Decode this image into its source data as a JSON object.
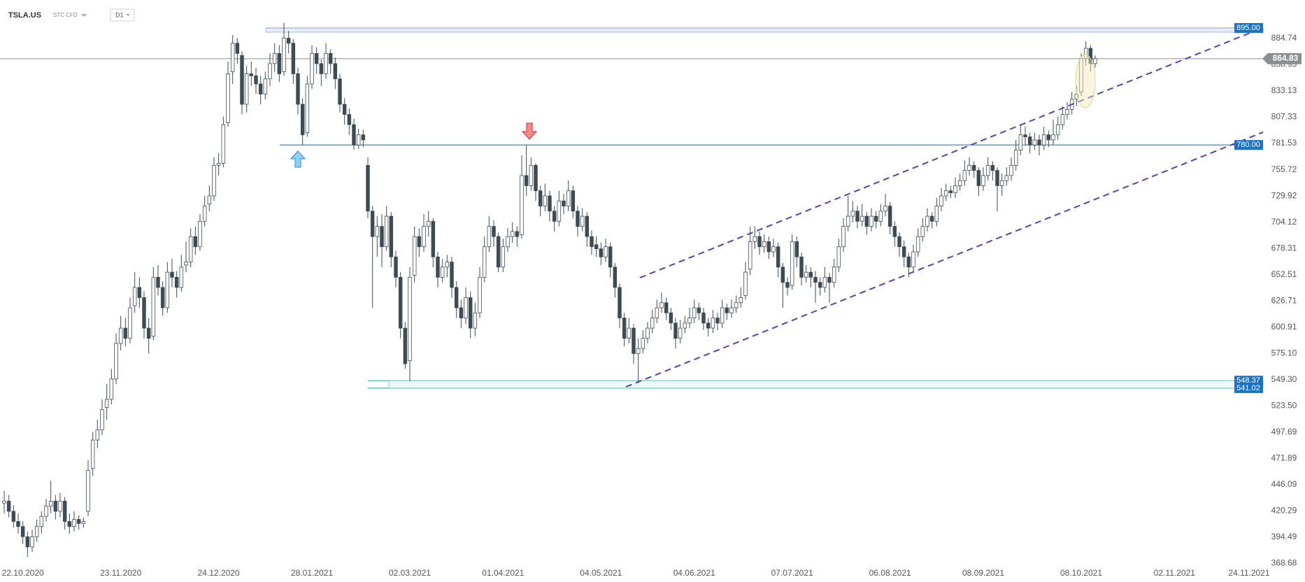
{
  "header": {
    "symbol": "TSLA.US",
    "kind": "STC CFD",
    "interval": "D1"
  },
  "chart_data": {
    "type": "candlestick",
    "ohlc": [
      [
        428,
        440,
        418,
        430
      ],
      [
        430,
        436,
        414,
        420
      ],
      [
        420,
        426,
        404,
        410
      ],
      [
        410,
        418,
        398,
        405
      ],
      [
        405,
        410,
        388,
        395
      ],
      [
        395,
        400,
        375,
        385
      ],
      [
        385,
        402,
        380,
        395
      ],
      [
        395,
        412,
        390,
        405
      ],
      [
        405,
        420,
        398,
        415
      ],
      [
        415,
        432,
        410,
        425
      ],
      [
        425,
        450,
        418,
        430
      ],
      [
        430,
        436,
        412,
        420
      ],
      [
        420,
        438,
        414,
        430
      ],
      [
        430,
        434,
        402,
        410
      ],
      [
        410,
        418,
        398,
        405
      ],
      [
        405,
        420,
        400,
        412
      ],
      [
        412,
        416,
        402,
        408
      ],
      [
        408,
        414,
        404,
        410
      ],
      [
        420,
        470,
        415,
        460
      ],
      [
        462,
        498,
        455,
        490
      ],
      [
        490,
        510,
        482,
        500
      ],
      [
        500,
        530,
        495,
        520
      ],
      [
        522,
        545,
        510,
        530
      ],
      [
        530,
        560,
        525,
        550
      ],
      [
        550,
        595,
        545,
        585
      ],
      [
        585,
        612,
        578,
        600
      ],
      [
        600,
        610,
        582,
        590
      ],
      [
        590,
        630,
        585,
        620
      ],
      [
        622,
        655,
        615,
        640
      ],
      [
        640,
        650,
        620,
        630
      ],
      [
        630,
        636,
        590,
        600
      ],
      [
        600,
        610,
        575,
        590
      ],
      [
        592,
        660,
        588,
        650
      ],
      [
        650,
        662,
        632,
        640
      ],
      [
        640,
        646,
        612,
        620
      ],
      [
        620,
        665,
        615,
        655
      ],
      [
        655,
        668,
        640,
        650
      ],
      [
        650,
        656,
        630,
        640
      ],
      [
        640,
        672,
        636,
        660
      ],
      [
        662,
        685,
        655,
        665
      ],
      [
        665,
        698,
        660,
        690
      ],
      [
        690,
        700,
        672,
        680
      ],
      [
        680,
        712,
        676,
        705
      ],
      [
        705,
        730,
        700,
        720
      ],
      [
        722,
        740,
        715,
        730
      ],
      [
        730,
        768,
        725,
        760
      ],
      [
        760,
        772,
        750,
        762
      ],
      [
        762,
        808,
        758,
        800
      ],
      [
        802,
        862,
        798,
        850
      ],
      [
        852,
        888,
        840,
        880
      ],
      [
        880,
        885,
        860,
        870
      ],
      [
        868,
        872,
        810,
        820
      ],
      [
        820,
        858,
        812,
        850
      ],
      [
        850,
        862,
        838,
        848
      ],
      [
        848,
        856,
        830,
        840
      ],
      [
        840,
        848,
        820,
        830
      ],
      [
        830,
        852,
        825,
        845
      ],
      [
        845,
        870,
        838,
        860
      ],
      [
        860,
        880,
        852,
        870
      ],
      [
        870,
        878,
        842,
        850
      ],
      [
        852,
        900,
        848,
        885
      ],
      [
        885,
        892,
        870,
        880
      ],
      [
        880,
        884,
        840,
        850
      ],
      [
        850,
        856,
        810,
        820
      ],
      [
        820,
        826,
        780,
        790
      ],
      [
        792,
        848,
        788,
        840
      ],
      [
        840,
        878,
        835,
        870
      ],
      [
        870,
        876,
        850,
        860
      ],
      [
        860,
        864,
        838,
        850
      ],
      [
        850,
        880,
        845,
        870
      ],
      [
        870,
        874,
        850,
        860
      ],
      [
        860,
        866,
        835,
        845
      ],
      [
        845,
        850,
        812,
        820
      ],
      [
        820,
        826,
        800,
        810
      ],
      [
        810,
        816,
        790,
        800
      ],
      [
        800,
        806,
        775,
        780
      ],
      [
        780,
        796,
        776,
        790
      ],
      [
        790,
        795,
        778,
        785
      ],
      [
        760,
        768,
        708,
        715
      ],
      [
        715,
        720,
        620,
        690
      ],
      [
        690,
        710,
        670,
        700
      ],
      [
        700,
        712,
        660,
        680
      ],
      [
        680,
        720,
        676,
        710
      ],
      [
        710,
        714,
        660,
        670
      ],
      [
        670,
        676,
        640,
        650
      ],
      [
        650,
        655,
        590,
        600
      ],
      [
        600,
        606,
        560,
        565
      ],
      [
        568,
        660,
        548,
        650
      ],
      [
        652,
        700,
        645,
        690
      ],
      [
        690,
        698,
        670,
        680
      ],
      [
        680,
        712,
        675,
        700
      ],
      [
        700,
        715,
        690,
        705
      ],
      [
        705,
        708,
        660,
        670
      ],
      [
        670,
        675,
        640,
        650
      ],
      [
        650,
        668,
        645,
        660
      ],
      [
        660,
        672,
        650,
        665
      ],
      [
        665,
        670,
        630,
        640
      ],
      [
        640,
        646,
        610,
        620
      ],
      [
        620,
        628,
        600,
        610
      ],
      [
        610,
        640,
        604,
        630
      ],
      [
        630,
        636,
        590,
        600
      ],
      [
        600,
        625,
        592,
        615
      ],
      [
        615,
        660,
        610,
        650
      ],
      [
        650,
        690,
        645,
        680
      ],
      [
        680,
        710,
        675,
        700
      ],
      [
        700,
        706,
        680,
        690
      ],
      [
        690,
        694,
        655,
        660
      ],
      [
        660,
        688,
        655,
        680
      ],
      [
        680,
        698,
        675,
        690
      ],
      [
        690,
        704,
        684,
        695
      ],
      [
        695,
        700,
        680,
        690
      ],
      [
        692,
        770,
        688,
        750
      ],
      [
        750,
        780,
        730,
        740
      ],
      [
        740,
        768,
        735,
        760
      ],
      [
        760,
        762,
        725,
        735
      ],
      [
        735,
        740,
        710,
        720
      ],
      [
        720,
        742,
        715,
        730
      ],
      [
        730,
        735,
        705,
        715
      ],
      [
        715,
        720,
        695,
        705
      ],
      [
        705,
        735,
        700,
        725
      ],
      [
        725,
        732,
        712,
        720
      ],
      [
        720,
        745,
        715,
        735
      ],
      [
        735,
        740,
        708,
        715
      ],
      [
        715,
        720,
        690,
        700
      ],
      [
        700,
        718,
        695,
        710
      ],
      [
        710,
        714,
        680,
        690
      ],
      [
        690,
        696,
        672,
        680
      ],
      [
        682,
        690,
        670,
        678
      ],
      [
        678,
        684,
        662,
        670
      ],
      [
        670,
        688,
        665,
        680
      ],
      [
        680,
        684,
        650,
        660
      ],
      [
        660,
        664,
        630,
        640
      ],
      [
        640,
        644,
        600,
        610
      ],
      [
        610,
        615,
        582,
        590
      ],
      [
        590,
        610,
        585,
        600
      ],
      [
        600,
        604,
        565,
        575
      ],
      [
        575,
        590,
        546,
        580
      ],
      [
        580,
        598,
        575,
        590
      ],
      [
        590,
        606,
        585,
        600
      ],
      [
        600,
        618,
        595,
        610
      ],
      [
        610,
        628,
        605,
        620
      ],
      [
        620,
        635,
        615,
        625
      ],
      [
        625,
        630,
        608,
        615
      ],
      [
        615,
        620,
        598,
        605
      ],
      [
        605,
        610,
        580,
        590
      ],
      [
        590,
        608,
        585,
        600
      ],
      [
        600,
        612,
        595,
        605
      ],
      [
        605,
        620,
        600,
        610
      ],
      [
        610,
        628,
        605,
        620
      ],
      [
        620,
        625,
        608,
        615
      ],
      [
        615,
        620,
        598,
        605
      ],
      [
        605,
        610,
        592,
        600
      ],
      [
        600,
        618,
        595,
        610
      ],
      [
        610,
        615,
        598,
        605
      ],
      [
        605,
        628,
        600,
        620
      ],
      [
        620,
        624,
        608,
        615
      ],
      [
        615,
        628,
        610,
        620
      ],
      [
        620,
        632,
        615,
        625
      ],
      [
        625,
        640,
        620,
        630
      ],
      [
        632,
        665,
        628,
        655
      ],
      [
        658,
        700,
        652,
        685
      ],
      [
        685,
        700,
        678,
        690
      ],
      [
        690,
        695,
        672,
        680
      ],
      [
        680,
        692,
        674,
        685
      ],
      [
        685,
        690,
        668,
        675
      ],
      [
        675,
        688,
        670,
        680
      ],
      [
        680,
        684,
        650,
        660
      ],
      [
        660,
        664,
        620,
        645
      ],
      [
        645,
        650,
        632,
        640
      ],
      [
        642,
        692,
        638,
        685
      ],
      [
        685,
        690,
        660,
        670
      ],
      [
        670,
        674,
        642,
        650
      ],
      [
        650,
        662,
        645,
        655
      ],
      [
        655,
        660,
        640,
        650
      ],
      [
        650,
        656,
        625,
        645
      ],
      [
        645,
        650,
        632,
        640
      ],
      [
        640,
        660,
        635,
        650
      ],
      [
        650,
        654,
        625,
        645
      ],
      [
        645,
        668,
        640,
        660
      ],
      [
        660,
        688,
        655,
        680
      ],
      [
        680,
        708,
        675,
        700
      ],
      [
        700,
        730,
        695,
        710
      ],
      [
        710,
        725,
        704,
        715
      ],
      [
        715,
        720,
        698,
        705
      ],
      [
        705,
        722,
        700,
        710
      ],
      [
        710,
        714,
        692,
        700
      ],
      [
        700,
        718,
        695,
        710
      ],
      [
        710,
        715,
        698,
        705
      ],
      [
        705,
        722,
        700,
        715
      ],
      [
        715,
        732,
        710,
        720
      ],
      [
        720,
        724,
        692,
        700
      ],
      [
        700,
        705,
        680,
        690
      ],
      [
        690,
        694,
        670,
        680
      ],
      [
        680,
        686,
        660,
        670
      ],
      [
        670,
        674,
        650,
        660
      ],
      [
        660,
        682,
        655,
        675
      ],
      [
        675,
        698,
        670,
        690
      ],
      [
        690,
        708,
        685,
        700
      ],
      [
        700,
        718,
        695,
        710
      ],
      [
        710,
        714,
        698,
        705
      ],
      [
        705,
        728,
        700,
        720
      ],
      [
        720,
        738,
        715,
        730
      ],
      [
        730,
        742,
        725,
        735
      ],
      [
        735,
        740,
        728,
        733
      ],
      [
        733,
        748,
        728,
        740
      ],
      [
        740,
        752,
        735,
        745
      ],
      [
        745,
        765,
        740,
        755
      ],
      [
        755,
        768,
        750,
        760
      ],
      [
        760,
        764,
        748,
        755
      ],
      [
        755,
        758,
        730,
        740
      ],
      [
        740,
        758,
        735,
        750
      ],
      [
        750,
        768,
        745,
        760
      ],
      [
        760,
        764,
        745,
        755
      ],
      [
        755,
        758,
        715,
        740
      ],
      [
        740,
        752,
        730,
        745
      ],
      [
        745,
        758,
        740,
        750
      ],
      [
        750,
        768,
        745,
        760
      ],
      [
        760,
        785,
        755,
        775
      ],
      [
        775,
        800,
        770,
        790
      ],
      [
        790,
        798,
        780,
        788
      ],
      [
        788,
        792,
        772,
        780
      ],
      [
        780,
        792,
        775,
        785
      ],
      [
        785,
        790,
        770,
        780
      ],
      [
        780,
        798,
        775,
        790
      ],
      [
        790,
        794,
        778,
        785
      ],
      [
        785,
        805,
        780,
        790
      ],
      [
        790,
        808,
        785,
        800
      ],
      [
        800,
        818,
        795,
        810
      ],
      [
        810,
        822,
        805,
        815
      ],
      [
        815,
        832,
        810,
        825
      ],
      [
        825,
        838,
        818,
        830
      ],
      [
        832,
        870,
        828,
        865
      ],
      [
        865,
        882,
        858,
        875
      ],
      [
        875,
        878,
        852,
        860
      ],
      [
        860,
        868,
        856,
        864.83
      ]
    ],
    "bull_color": "#ffffff",
    "bear_color": "#3d4b55",
    "wick_color": "#3d4b55",
    "xlim": [
      -0.9,
      270
    ],
    "xticks": [
      {
        "value": 4,
        "label": "22.10.2020"
      },
      {
        "value": 25,
        "label": "23.11.2020"
      },
      {
        "value": 46,
        "label": "24.12.2020"
      },
      {
        "value": 66,
        "label": "28.01.2021"
      },
      {
        "value": 87,
        "label": "02.03.2021"
      },
      {
        "value": 107,
        "label": "01.04.2021"
      },
      {
        "value": 128,
        "label": "04.05.2021"
      },
      {
        "value": 148,
        "label": "04.06.2021"
      },
      {
        "value": 169,
        "label": "07.07.2021"
      },
      {
        "value": 190,
        "label": "06.08.2021"
      },
      {
        "value": 210,
        "label": "08.09.2021"
      },
      {
        "value": 231,
        "label": "08.10.2021"
      },
      {
        "value": 251,
        "label": "02.11.2021"
      },
      {
        "value": 267,
        "label": "24.11.2021"
      }
    ],
    "ylim": [
      367,
      922.5
    ],
    "yticks": [
      368.68,
      394.49,
      420.29,
      446.09,
      471.89,
      497.69,
      {
        "value": 523.5,
        "label": "523.50"
      },
      {
        "value": 549.3,
        "label": "549.30"
      },
      {
        "value": 575.1,
        "label": "575.10"
      },
      600.91,
      626.71,
      652.51,
      678.31,
      704.12,
      729.92,
      755.72,
      781.53,
      807.33,
      833.13,
      858.93,
      884.74
    ],
    "levels": [
      {
        "value": 895,
        "label": "895.00",
        "color": "#3b6fd8"
      },
      {
        "value": 780,
        "label": "780.00",
        "color": "#2b8fd6"
      },
      {
        "value": 548.37,
        "color": "#3bb5b0"
      },
      {
        "value": 541.02,
        "color": "#3bb5b0"
      }
    ],
    "level_tag_color": "#1a73c9",
    "last_price": 864.83,
    "last_price_color": "#8a8f94"
  }
}
